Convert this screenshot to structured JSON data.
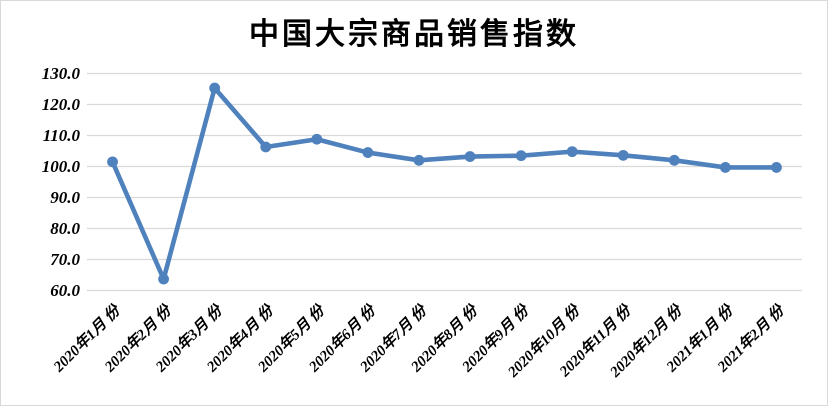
{
  "chart_data": {
    "type": "line",
    "title": "中国大宗商品销售指数",
    "categories": [
      "2020年1月 份",
      "2020年2月 份",
      "2020年3月 份",
      "2020年4月 份",
      "2020年5月 份",
      "2020年6月 份",
      "2020年7月 份",
      "2020年8月 份",
      "2020年9月 份",
      "2020年10月 份",
      "2020年11月 份",
      "2020年12月 份",
      "2021年1月 份",
      "2021年2月 份"
    ],
    "values": [
      101.5,
      63.7,
      125.3,
      106.3,
      108.8,
      104.5,
      102.0,
      103.2,
      103.5,
      104.8,
      103.6,
      102.0,
      99.7,
      99.7
    ],
    "xlabel": "",
    "ylabel": "",
    "ylim": [
      60,
      130
    ],
    "ytick_step": 10,
    "ytick_decimals": 1,
    "ytick_labels": [
      "60.0",
      "70.0",
      "80.0",
      "90.0",
      "100.0",
      "110.0",
      "120.0",
      "130.0"
    ],
    "grid": "horizontal",
    "legend_position": "none",
    "marker": "circle",
    "colors": {
      "series": "#4f81bd",
      "gridline": "#d9d9d9",
      "chart_border": "#d9d9d9",
      "text": "#000000",
      "background": "#ffffff"
    }
  }
}
